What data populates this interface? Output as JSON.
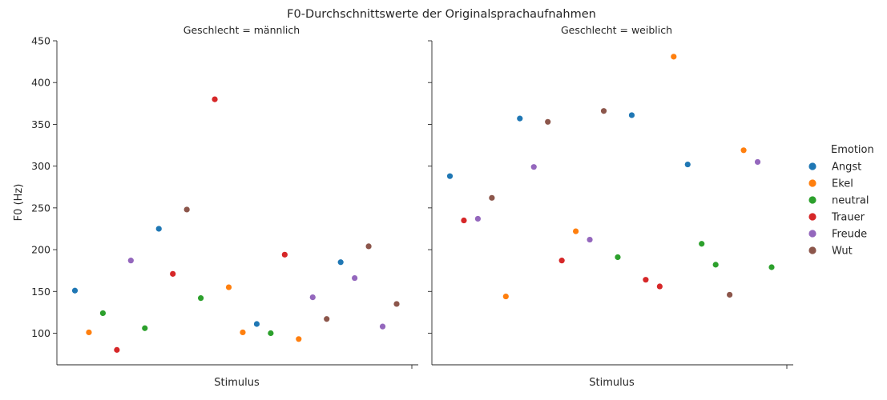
{
  "chart_data": {
    "type": "scatter",
    "title": "F0-Durchschnittswerte der Originalsprachaufnahmen",
    "ylabel": "F0 (Hz)",
    "xlabel": "Stimulus",
    "ylim": [
      55,
      450
    ],
    "yticks": [
      100,
      150,
      200,
      250,
      300,
      350,
      400,
      450
    ],
    "legend": {
      "title": "Emotion",
      "placement": "right",
      "entries": [
        {
          "name": "Angst",
          "color": "#1f77b4"
        },
        {
          "name": "Ekel",
          "color": "#ff7f0e"
        },
        {
          "name": "neutral",
          "color": "#2ca02c"
        },
        {
          "name": "Trauer",
          "color": "#d62728"
        },
        {
          "name": "Freude",
          "color": "#9467bd"
        },
        {
          "name": "Wut",
          "color": "#8c564b"
        }
      ]
    },
    "panels": [
      {
        "title": "Geschlecht = männlich",
        "points": [
          {
            "emotion": "Angst",
            "y": 151
          },
          {
            "emotion": "Ekel",
            "y": 101
          },
          {
            "emotion": "neutral",
            "y": 124
          },
          {
            "emotion": "Trauer",
            "y": 80
          },
          {
            "emotion": "Freude",
            "y": 187
          },
          {
            "emotion": "neutral",
            "y": 106
          },
          {
            "emotion": "Angst",
            "y": 225
          },
          {
            "emotion": "Trauer",
            "y": 171
          },
          {
            "emotion": "Wut",
            "y": 248
          },
          {
            "emotion": "neutral",
            "y": 142
          },
          {
            "emotion": "Trauer",
            "y": 380
          },
          {
            "emotion": "Ekel",
            "y": 155
          },
          {
            "emotion": "Ekel",
            "y": 101
          },
          {
            "emotion": "Angst",
            "y": 111
          },
          {
            "emotion": "neutral",
            "y": 100
          },
          {
            "emotion": "Trauer",
            "y": 194
          },
          {
            "emotion": "Ekel",
            "y": 93
          },
          {
            "emotion": "Freude",
            "y": 143
          },
          {
            "emotion": "Wut",
            "y": 117
          },
          {
            "emotion": "Angst",
            "y": 185
          },
          {
            "emotion": "Freude",
            "y": 166
          },
          {
            "emotion": "Wut",
            "y": 204
          },
          {
            "emotion": "Freude",
            "y": 108
          },
          {
            "emotion": "Wut",
            "y": 135
          }
        ]
      },
      {
        "title": "Geschlecht = weiblich",
        "points": [
          {
            "emotion": "Angst",
            "y": 288
          },
          {
            "emotion": "Trauer",
            "y": 235
          },
          {
            "emotion": "Freude",
            "y": 237
          },
          {
            "emotion": "Wut",
            "y": 262
          },
          {
            "emotion": "Ekel",
            "y": 144
          },
          {
            "emotion": "Angst",
            "y": 357
          },
          {
            "emotion": "Freude",
            "y": 299
          },
          {
            "emotion": "Wut",
            "y": 353
          },
          {
            "emotion": "Trauer",
            "y": 187
          },
          {
            "emotion": "Ekel",
            "y": 222
          },
          {
            "emotion": "Freude",
            "y": 212
          },
          {
            "emotion": "Wut",
            "y": 366
          },
          {
            "emotion": "neutral",
            "y": 191
          },
          {
            "emotion": "Angst",
            "y": 361
          },
          {
            "emotion": "Trauer",
            "y": 164
          },
          {
            "emotion": "Trauer",
            "y": 156
          },
          {
            "emotion": "Ekel",
            "y": 431
          },
          {
            "emotion": "Angst",
            "y": 302
          },
          {
            "emotion": "neutral",
            "y": 207
          },
          {
            "emotion": "neutral",
            "y": 182
          },
          {
            "emotion": "Wut",
            "y": 146
          },
          {
            "emotion": "Ekel",
            "y": 319
          },
          {
            "emotion": "Freude",
            "y": 305
          },
          {
            "emotion": "neutral",
            "y": 179
          }
        ]
      }
    ]
  }
}
